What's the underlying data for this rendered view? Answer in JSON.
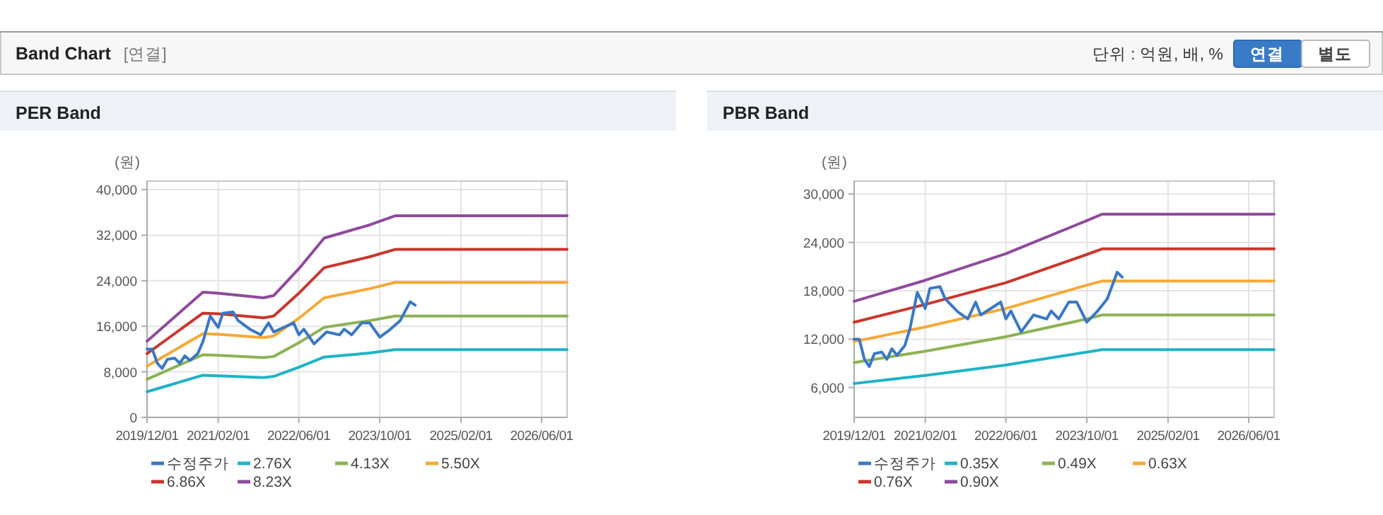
{
  "chart_data": [
    {
      "type": "other",
      "title": "Band Chart",
      "subtitle": "[연결]",
      "annotations": [
        "단위 : 억원, 배, %",
        "연결",
        "별도"
      ]
    },
    {
      "type": "line",
      "title": "PER Band",
      "ylabel": "(원)",
      "xlim": [
        "2019-12-01",
        "2026-11-01"
      ],
      "ylim": [
        0,
        41500
      ],
      "xticks": [
        {
          "value": "2019-12-01",
          "label": "2019/12/01"
        },
        {
          "value": "2021-02-01",
          "label": "2021/02/01"
        },
        {
          "value": "2022-06-01",
          "label": "2022/06/01"
        },
        {
          "value": "2023-10-01",
          "label": "2023/10/01"
        },
        {
          "value": "2025-02-01",
          "label": "2025/02/01"
        },
        {
          "value": "2026-06-01",
          "label": "2026/06/01"
        }
      ],
      "yticks": [
        0,
        {
          "value": 8000,
          "label": "8,000"
        },
        {
          "value": 16000,
          "label": "16,000"
        },
        {
          "value": 24000,
          "label": "24,000"
        },
        {
          "value": 32000,
          "label": "32,000"
        },
        {
          "value": 40000,
          "label": "40,000"
        }
      ],
      "grid": true,
      "legend": "bottom",
      "series": [
        {
          "name": "수정주가",
          "color": "#3a78c3",
          "x": [
            "2019-12-01",
            "2020-01-01",
            "2020-02-01",
            "2020-03-01",
            "2020-04-01",
            "2020-05-15",
            "2020-06-15",
            "2020-07-15",
            "2020-08-15",
            "2020-10-01",
            "2020-11-01",
            "2020-12-15",
            "2021-02-01",
            "2021-03-01",
            "2021-05-01",
            "2021-06-01",
            "2021-08-15",
            "2021-10-15",
            "2021-12-01",
            "2022-01-01",
            "2022-05-01",
            "2022-06-01",
            "2022-07-01",
            "2022-09-01",
            "2022-11-15",
            "2023-02-01",
            "2023-03-01",
            "2023-04-15",
            "2023-06-15",
            "2023-08-01",
            "2023-10-01",
            "2023-12-01",
            "2024-02-01",
            "2024-04-01",
            "2024-05-01"
          ],
          "values": [
            12000,
            12000,
            9500,
            8600,
            10200,
            10400,
            9500,
            10800,
            10000,
            11200,
            13300,
            17800,
            15800,
            18300,
            18500,
            17000,
            15400,
            14500,
            16600,
            15000,
            16600,
            14500,
            15500,
            12900,
            15000,
            14500,
            15500,
            14500,
            16600,
            16600,
            14100,
            15400,
            17000,
            20300,
            19700
          ]
        },
        {
          "name": "2.76X",
          "color": "#1fb3c6",
          "x": [
            "2019-12-01",
            "2020-11-01",
            "2021-02-01",
            "2021-11-01",
            "2022-01-01",
            "2022-06-01",
            "2022-11-01",
            "2023-08-01",
            "2024-01-01",
            "2026-11-01"
          ],
          "values": [
            4500,
            7400,
            7300,
            7000,
            7200,
            8800,
            10600,
            11300,
            11900,
            11900
          ]
        },
        {
          "name": "4.13X",
          "color": "#8db255",
          "x": [
            "2019-12-01",
            "2020-11-01",
            "2021-02-01",
            "2021-11-01",
            "2022-01-01",
            "2022-06-01",
            "2022-11-01",
            "2023-08-01",
            "2024-01-01",
            "2026-11-01"
          ],
          "values": [
            6700,
            11000,
            10900,
            10500,
            10700,
            13100,
            15800,
            17000,
            17800,
            17800
          ]
        },
        {
          "name": "5.50X",
          "color": "#f5a936",
          "x": [
            "2019-12-01",
            "2020-11-01",
            "2021-02-01",
            "2021-11-01",
            "2022-01-01",
            "2022-06-01",
            "2022-11-01",
            "2023-08-01",
            "2024-01-01",
            "2026-11-01"
          ],
          "values": [
            9000,
            14700,
            14600,
            14000,
            14300,
            17400,
            21000,
            22600,
            23700,
            23700
          ]
        },
        {
          "name": "6.86X",
          "color": "#c8372d",
          "x": [
            "2019-12-01",
            "2020-11-01",
            "2021-02-01",
            "2021-11-01",
            "2022-01-01",
            "2022-06-01",
            "2022-11-01",
            "2023-08-01",
            "2024-01-01",
            "2026-11-01"
          ],
          "values": [
            11200,
            18300,
            18200,
            17500,
            17800,
            21800,
            26300,
            28200,
            29500,
            29500
          ]
        },
        {
          "name": "8.23X",
          "color": "#8e4a9c",
          "x": [
            "2019-12-01",
            "2020-11-01",
            "2021-02-01",
            "2021-11-01",
            "2022-01-01",
            "2022-06-01",
            "2022-11-01",
            "2023-08-01",
            "2024-01-01",
            "2026-11-01"
          ],
          "values": [
            13400,
            22000,
            21800,
            21000,
            21400,
            26100,
            31500,
            33800,
            35400,
            35400
          ]
        }
      ]
    },
    {
      "type": "line",
      "title": "PBR Band",
      "ylabel": "(원)",
      "xlim": [
        "2019-12-01",
        "2026-11-01"
      ],
      "ylim": [
        2300,
        31600
      ],
      "xticks": [
        {
          "value": "2019-12-01",
          "label": "2019/12/01"
        },
        {
          "value": "2021-02-01",
          "label": "2021/02/01"
        },
        {
          "value": "2022-06-01",
          "label": "2022/06/01"
        },
        {
          "value": "2023-10-01",
          "label": "2023/10/01"
        },
        {
          "value": "2025-02-01",
          "label": "2025/02/01"
        },
        {
          "value": "2026-06-01",
          "label": "2026/06/01"
        }
      ],
      "yticks": [
        {
          "value": 6000,
          "label": "6,000"
        },
        {
          "value": 12000,
          "label": "12,000"
        },
        {
          "value": 18000,
          "label": "18,000"
        },
        {
          "value": 24000,
          "label": "24,000"
        },
        {
          "value": 30000,
          "label": "30,000"
        }
      ],
      "grid": true,
      "legend": "bottom",
      "series": [
        {
          "name": "수정주가",
          "color": "#3a78c3",
          "x": [
            "2019-12-01",
            "2020-01-01",
            "2020-02-01",
            "2020-03-01",
            "2020-04-01",
            "2020-05-15",
            "2020-06-15",
            "2020-07-15",
            "2020-08-15",
            "2020-10-01",
            "2020-11-01",
            "2020-12-15",
            "2021-02-01",
            "2021-03-01",
            "2021-05-01",
            "2021-06-01",
            "2021-08-15",
            "2021-10-15",
            "2021-12-01",
            "2022-01-01",
            "2022-05-01",
            "2022-06-01",
            "2022-07-01",
            "2022-09-01",
            "2022-11-15",
            "2023-02-01",
            "2023-03-01",
            "2023-04-15",
            "2023-06-15",
            "2023-08-01",
            "2023-10-01",
            "2023-12-01",
            "2024-02-01",
            "2024-04-01",
            "2024-05-01"
          ],
          "values": [
            12000,
            12000,
            9500,
            8600,
            10200,
            10400,
            9500,
            10800,
            10000,
            11200,
            13300,
            17800,
            15800,
            18300,
            18500,
            17000,
            15400,
            14500,
            16600,
            15000,
            16600,
            14500,
            15500,
            12900,
            15000,
            14500,
            15500,
            14500,
            16600,
            16600,
            14100,
            15400,
            17000,
            20300,
            19700
          ]
        },
        {
          "name": "0.35X",
          "color": "#1fb3c6",
          "x": [
            "2019-12-01",
            "2021-02-01",
            "2022-06-01",
            "2023-10-01",
            "2024-01-01",
            "2026-11-01"
          ],
          "values": [
            6500,
            7500,
            8800,
            10400,
            10700,
            10700
          ]
        },
        {
          "name": "0.49X",
          "color": "#8db255",
          "x": [
            "2019-12-01",
            "2021-02-01",
            "2022-06-01",
            "2023-10-01",
            "2024-01-01",
            "2026-11-01"
          ],
          "values": [
            9100,
            10500,
            12300,
            14500,
            15000,
            15000
          ]
        },
        {
          "name": "0.63X",
          "color": "#f5a936",
          "x": [
            "2019-12-01",
            "2021-02-01",
            "2022-06-01",
            "2023-10-01",
            "2024-01-01",
            "2026-11-01"
          ],
          "values": [
            11700,
            13500,
            15800,
            18700,
            19200,
            19200
          ]
        },
        {
          "name": "0.76X",
          "color": "#c8372d",
          "x": [
            "2019-12-01",
            "2021-02-01",
            "2022-06-01",
            "2023-10-01",
            "2024-01-01",
            "2026-11-01"
          ],
          "values": [
            14100,
            16300,
            19000,
            22500,
            23200,
            23200
          ]
        },
        {
          "name": "0.90X",
          "color": "#8e4a9c",
          "x": [
            "2019-12-01",
            "2021-02-01",
            "2022-06-01",
            "2023-10-01",
            "2024-01-01",
            "2026-11-01"
          ],
          "values": [
            16700,
            19300,
            22600,
            26700,
            27500,
            27500
          ]
        }
      ]
    }
  ]
}
